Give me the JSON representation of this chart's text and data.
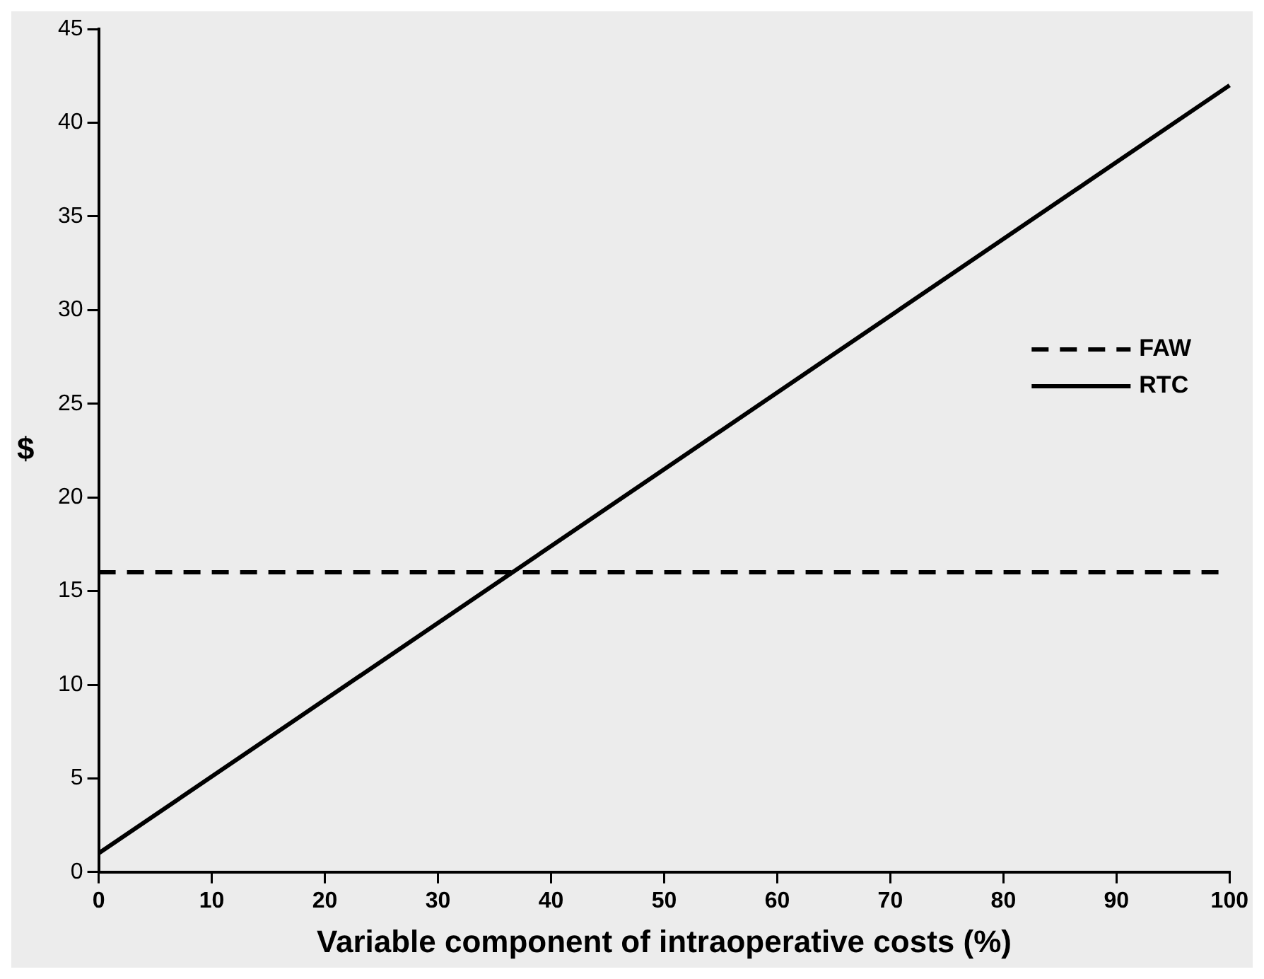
{
  "chart_data": {
    "type": "line",
    "xlabel": "Variable component of intraoperative costs (%)",
    "ylabel": "$",
    "x": [
      0,
      100
    ],
    "series": [
      {
        "name": "FAW",
        "color": "#000000",
        "line_style": "dashed",
        "values": [
          16,
          16
        ]
      },
      {
        "name": "RTC",
        "color": "#000000",
        "line_style": "solid",
        "values": [
          1,
          42
        ]
      }
    ],
    "xlim": [
      0,
      100
    ],
    "xticks": [
      0,
      10,
      20,
      30,
      40,
      50,
      60,
      70,
      80,
      90,
      100
    ],
    "ylim": [
      0,
      45
    ],
    "yticks": [
      0,
      5,
      10,
      15,
      20,
      25,
      30,
      35,
      40,
      45
    ],
    "grid": false,
    "legend": "right",
    "marker": "none"
  }
}
